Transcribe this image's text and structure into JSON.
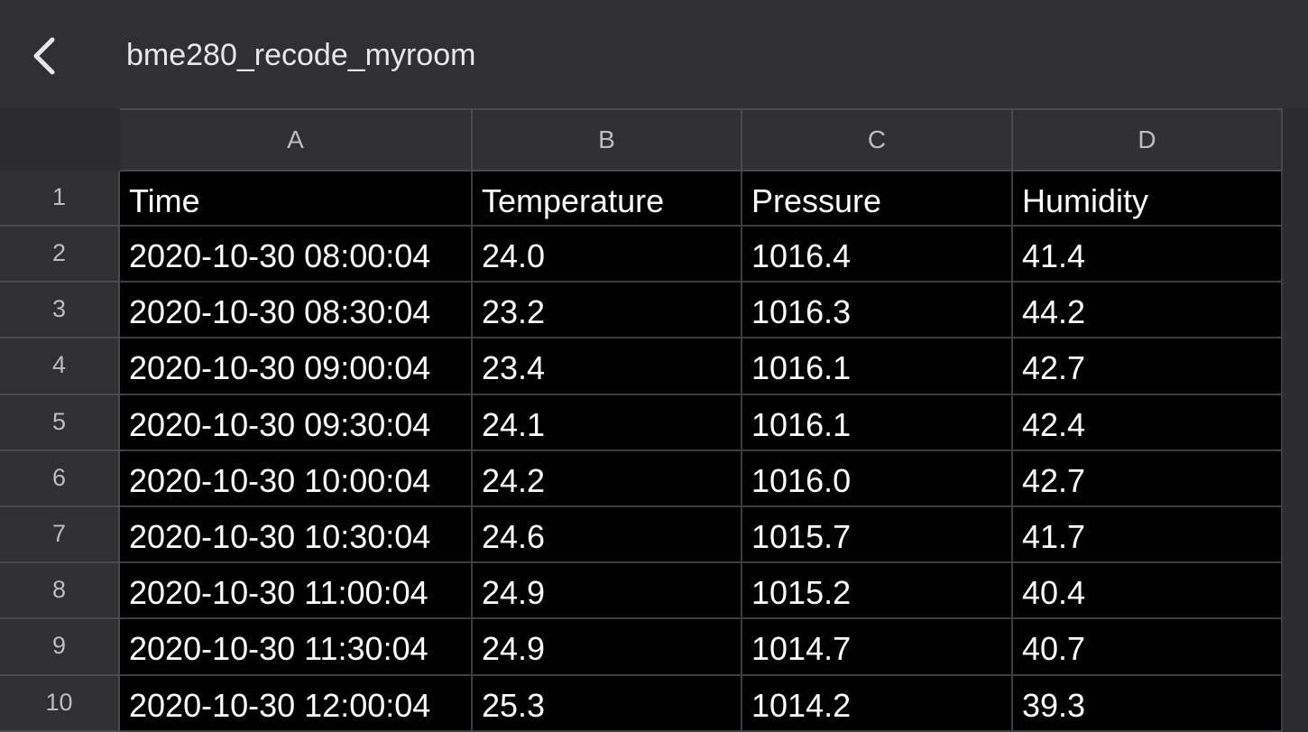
{
  "header": {
    "title": "bme280_recode_myroom"
  },
  "table": {
    "columns": [
      "A",
      "B",
      "C",
      "D"
    ],
    "row_numbers": [
      1,
      2,
      3,
      4,
      5,
      6,
      7,
      8,
      9,
      10
    ],
    "rows": [
      [
        "Time",
        "Temperature",
        "Pressure",
        "Humidity"
      ],
      [
        "2020-10-30 08:00:04",
        "24.0",
        "1016.4",
        "41.4"
      ],
      [
        "2020-10-30 08:30:04",
        "23.2",
        "1016.3",
        "44.2"
      ],
      [
        "2020-10-30 09:00:04",
        "23.4",
        "1016.1",
        "42.7"
      ],
      [
        "2020-10-30 09:30:04",
        "24.1",
        "1016.1",
        "42.4"
      ],
      [
        "2020-10-30 10:00:04",
        "24.2",
        "1016.0",
        "42.7"
      ],
      [
        "2020-10-30 10:30:04",
        "24.6",
        "1015.7",
        "41.7"
      ],
      [
        "2020-10-30 11:00:04",
        "24.9",
        "1015.2",
        "40.4"
      ],
      [
        "2020-10-30 11:30:04",
        "24.9",
        "1014.7",
        "40.7"
      ],
      [
        "2020-10-30 12:00:04",
        "25.3",
        "1014.2",
        "39.3"
      ]
    ]
  }
}
